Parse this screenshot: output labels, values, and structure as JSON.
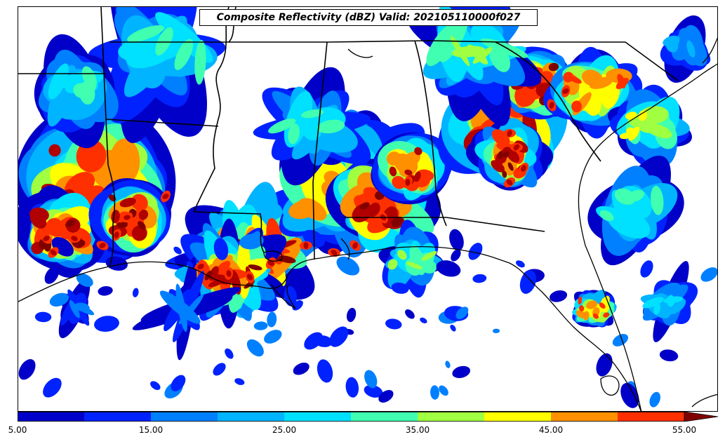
{
  "title": "Composite Reflectivity (dBZ) Valid: 202105110000f027",
  "colorbar": {
    "unit": "dBZ",
    "levels": [
      5,
      10,
      15,
      20,
      25,
      30,
      35,
      40,
      45,
      50,
      55
    ],
    "colors": [
      "#0000c8",
      "#0022ff",
      "#0080ff",
      "#00b4ff",
      "#00e0ff",
      "#40ffb0",
      "#a0ff40",
      "#ffff00",
      "#ff9000",
      "#ff3000",
      "#b00000",
      "#800000"
    ],
    "extend": "max",
    "tick_labels": [
      "5.00",
      "15.00",
      "25.00",
      "35.00",
      "45.00",
      "55.00"
    ]
  },
  "map": {
    "region": "Southeastern United States",
    "features": [
      "state-borders",
      "coastlines",
      "reflectivity-field"
    ],
    "background": "#ffffff"
  }
}
